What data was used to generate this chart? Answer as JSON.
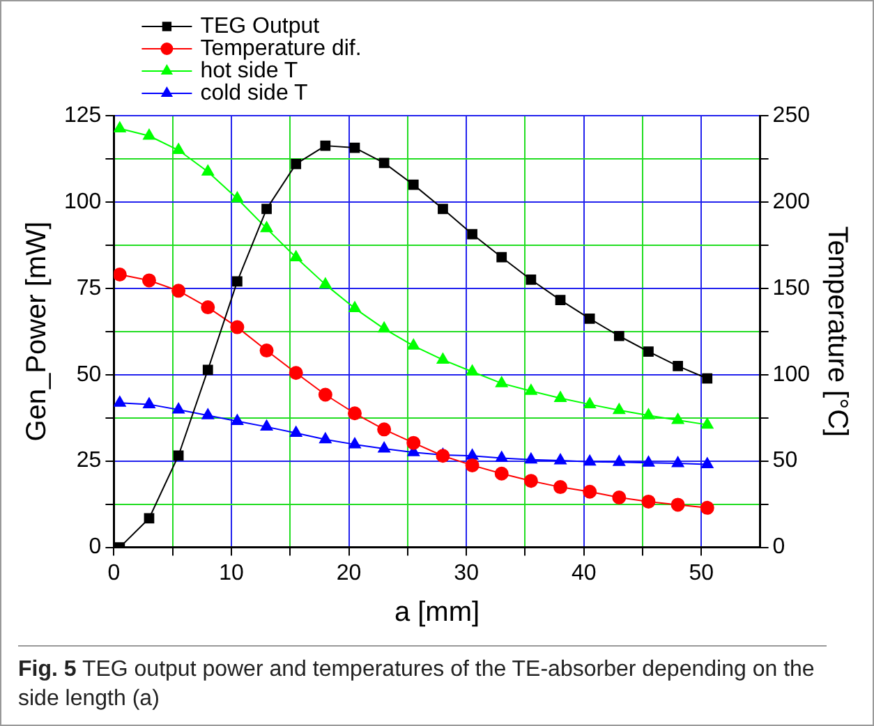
{
  "chart_data": {
    "type": "line",
    "xlabel": "a [mm]",
    "ylabel": "Gen_Power [mW]",
    "y2label": "Temperature [°C]",
    "x": [
      0.5,
      3,
      5.5,
      8,
      10.5,
      13,
      15.5,
      18,
      20.5,
      23,
      25.5,
      28,
      30.5,
      33,
      35.5,
      38,
      40.5,
      43,
      45.5,
      48,
      50.5
    ],
    "xlim": [
      0,
      55
    ],
    "xticks": [
      0,
      {
        "value": 5,
        "label": null
      },
      10,
      {
        "value": 15,
        "label": null
      },
      20,
      {
        "value": 25,
        "label": null
      },
      30,
      {
        "value": 35,
        "label": null
      },
      40,
      {
        "value": 45,
        "label": null
      },
      50
    ],
    "ylim": [
      0,
      125
    ],
    "yticks": [
      0,
      {
        "value": 12.5,
        "label": null
      },
      25,
      {
        "value": 37.5,
        "label": null
      },
      50,
      {
        "value": 62.5,
        "label": null
      },
      75,
      {
        "value": 87.5,
        "label": null
      },
      100,
      {
        "value": 112.5,
        "label": null
      },
      125
    ],
    "y2lim": [
      0,
      250
    ],
    "y2ticks": [
      0,
      {
        "value": 25,
        "label": null
      },
      50,
      {
        "value": 75,
        "label": null
      },
      100,
      {
        "value": 125,
        "label": null
      },
      150,
      {
        "value": 175,
        "label": null
      },
      200,
      {
        "value": 225,
        "label": null
      },
      250
    ],
    "grid": true,
    "legend": "top left",
    "line_style": "solid",
    "series": [
      {
        "name": "TEG Output",
        "color": "#000000",
        "marker": "square",
        "values": [
          0,
          8.4,
          26.6,
          51.4,
          77,
          98,
          111,
          116.3,
          115.7,
          111.3,
          105,
          98,
          90.7,
          84,
          77.5,
          71.6,
          66.2,
          61.2,
          56.7,
          52.5,
          48.9
        ]
      },
      {
        "name": "Temperature dif.",
        "color": "#ff0000",
        "marker": "circle",
        "axis": "y2",
        "values": [
          158,
          154.6,
          148.6,
          139,
          127.5,
          114,
          101,
          88.4,
          77.6,
          68.3,
          60.5,
          53,
          47.5,
          42.7,
          38.5,
          34.9,
          32.2,
          28.9,
          26.5,
          24.7,
          22.9
        ]
      },
      {
        "name": "hot side T",
        "color": "#00ff00",
        "marker": "triangle",
        "axis": "y2",
        "values": [
          242.5,
          238.3,
          230,
          217.5,
          202,
          184.7,
          167.9,
          152.2,
          138.4,
          126.6,
          116.7,
          108.6,
          101.7,
          95,
          90.5,
          86.4,
          82.8,
          79.4,
          76.4,
          73.7,
          71
        ]
      },
      {
        "name": "cold side T",
        "color": "#0000ff",
        "marker": "triangle",
        "axis": "y2",
        "values": [
          83.7,
          82.8,
          79.7,
          76.4,
          73.1,
          69.8,
          66.2,
          62.5,
          59.6,
          57.1,
          55,
          53.5,
          53,
          51.7,
          50.8,
          50.3,
          49.6,
          49.4,
          49,
          48.7,
          48.1
        ]
      }
    ],
    "annotations": [
      "Fig. 5  TEG output power and temperatures of the TE-absorber depending on the side length (a)"
    ]
  }
}
